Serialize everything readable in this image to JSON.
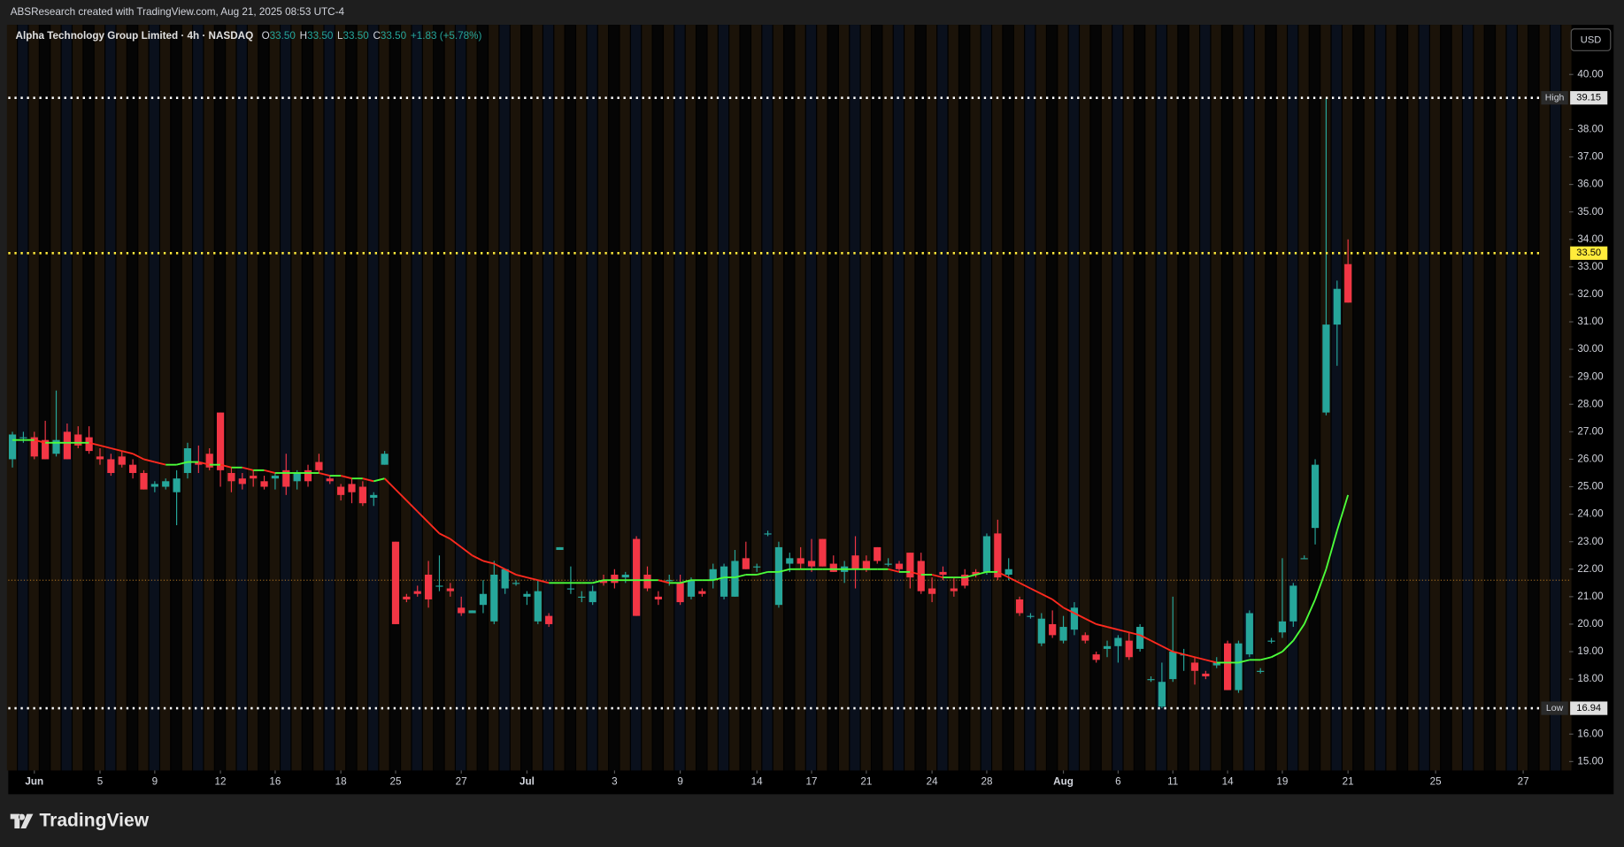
{
  "header": "ABSResearch created with TradingView.com, Aug 21, 2025 08:53 UTC-4",
  "brand": "TradingView",
  "chart_data": {
    "type": "candlestick",
    "symbol": "Alpha Technology Group Limited · 4h · NASDAQ",
    "legend_fields": [
      {
        "key": "O",
        "value": "33.50"
      },
      {
        "key": "H",
        "value": "33.50"
      },
      {
        "key": "L",
        "value": "33.50"
      },
      {
        "key": "C",
        "value": "33.50"
      }
    ],
    "change": "+1.83 (+5.78%)",
    "currency": "USD",
    "up_color": "#26a69a",
    "down_color": "#f23645",
    "ma_up_color": "#4cff3a",
    "ma_down_color": "#ff2a1f",
    "session_colors": [
      "#1b1309",
      "#0a101c",
      "#050505"
    ],
    "categories": [
      null,
      null,
      "Jun",
      null,
      null,
      null,
      null,
      null,
      "5",
      null,
      null,
      null,
      null,
      "9",
      null,
      null,
      null,
      null,
      null,
      "12",
      null,
      null,
      null,
      null,
      "16",
      null,
      null,
      null,
      null,
      null,
      "18",
      null,
      null,
      null,
      null,
      "25",
      null,
      null,
      null,
      null,
      null,
      "27",
      null,
      null,
      null,
      null,
      null,
      "Jul",
      null,
      null,
      null,
      null,
      null,
      null,
      null,
      "3",
      null,
      null,
      null,
      null,
      null,
      "9",
      null,
      null,
      null,
      null,
      null,
      null,
      "14",
      null,
      null,
      null,
      null,
      "17",
      null,
      null,
      null,
      null,
      "21",
      null,
      null,
      null,
      null,
      null,
      "24",
      null,
      null,
      null,
      null,
      "28",
      null,
      null,
      null,
      null,
      null,
      null,
      "Aug",
      null,
      null,
      null,
      null,
      "6",
      null,
      null,
      null,
      null,
      "11",
      null,
      null,
      null,
      null,
      "14",
      null,
      null,
      null,
      null,
      "19",
      null,
      null,
      null,
      null,
      null,
      "21",
      null,
      null,
      null,
      null,
      null,
      null,
      null,
      "25",
      null,
      null,
      null,
      null,
      null,
      null,
      null,
      "27",
      null,
      null,
      null,
      null
    ],
    "ohlc": [
      [
        26.0,
        27.0,
        25.7,
        26.9
      ],
      [
        26.8,
        27.0,
        26.6,
        26.8
      ],
      [
        26.8,
        27.0,
        26.0,
        26.1
      ],
      [
        26.7,
        27.4,
        26.0,
        26.0
      ],
      [
        26.2,
        28.5,
        26.1,
        26.7
      ],
      [
        27.0,
        27.3,
        26.0,
        26.0
      ],
      [
        26.9,
        27.2,
        26.4,
        26.5
      ],
      [
        26.8,
        27.2,
        26.2,
        26.3
      ],
      [
        26.1,
        26.4,
        25.8,
        26.0
      ],
      [
        26.0,
        26.2,
        25.4,
        25.5
      ],
      [
        26.1,
        26.3,
        25.7,
        25.8
      ],
      [
        25.8,
        26.0,
        25.3,
        25.5
      ],
      [
        25.5,
        25.6,
        24.9,
        24.9
      ],
      [
        25.0,
        25.2,
        24.8,
        25.1
      ],
      [
        25.0,
        25.3,
        24.9,
        25.2
      ],
      [
        24.8,
        25.6,
        23.6,
        25.3
      ],
      [
        25.5,
        26.6,
        25.3,
        26.4
      ],
      [
        25.9,
        26.5,
        25.5,
        25.8
      ],
      [
        26.2,
        26.4,
        25.6,
        25.7
      ],
      [
        27.7,
        27.7,
        25.0,
        25.6
      ],
      [
        25.5,
        25.7,
        24.8,
        25.2
      ],
      [
        25.3,
        25.5,
        24.9,
        25.1
      ],
      [
        25.4,
        25.6,
        25.0,
        25.3
      ],
      [
        25.2,
        25.4,
        24.9,
        25.0
      ],
      [
        25.3,
        25.5,
        24.9,
        25.4
      ],
      [
        25.6,
        26.2,
        24.7,
        25.0
      ],
      [
        25.2,
        25.6,
        24.9,
        25.5
      ],
      [
        25.6,
        25.8,
        25.0,
        25.2
      ],
      [
        25.9,
        26.2,
        25.5,
        25.6
      ],
      [
        25.3,
        25.4,
        25.1,
        25.2
      ],
      [
        25.0,
        25.1,
        24.5,
        24.7
      ],
      [
        25.1,
        25.3,
        24.4,
        24.8
      ],
      [
        25.0,
        25.2,
        24.3,
        24.4
      ],
      [
        24.6,
        24.8,
        24.3,
        24.7
      ],
      [
        25.8,
        26.3,
        25.8,
        26.2
      ],
      [
        23.0,
        23.0,
        20.0,
        20.0
      ],
      [
        21.0,
        21.1,
        20.8,
        20.9
      ],
      [
        21.2,
        21.4,
        21.0,
        21.1
      ],
      [
        21.8,
        22.3,
        20.6,
        20.9
      ],
      [
        21.4,
        22.5,
        21.2,
        21.4
      ],
      [
        21.3,
        21.5,
        21.0,
        21.2
      ],
      [
        20.6,
        21.0,
        20.3,
        20.4
      ],
      [
        20.4,
        20.5,
        20.4,
        20.5
      ],
      [
        20.7,
        21.6,
        20.4,
        21.1
      ],
      [
        20.1,
        22.3,
        20.0,
        21.8
      ],
      [
        21.3,
        22.0,
        21.1,
        22.0
      ],
      [
        21.5,
        21.6,
        21.4,
        21.5
      ],
      [
        21.0,
        21.2,
        20.7,
        21.1
      ],
      [
        20.1,
        21.6,
        20.0,
        21.2
      ],
      [
        20.3,
        20.4,
        19.9,
        20.0
      ],
      [
        22.7,
        22.8,
        22.7,
        22.8
      ],
      [
        21.3,
        22.1,
        21.1,
        21.3
      ],
      [
        21.0,
        21.2,
        20.8,
        21.0
      ],
      [
        20.8,
        21.4,
        20.7,
        21.2
      ],
      [
        21.6,
        21.8,
        21.4,
        21.5
      ],
      [
        21.8,
        22.0,
        21.3,
        21.5
      ],
      [
        21.7,
        21.9,
        21.5,
        21.8
      ],
      [
        23.1,
        23.2,
        20.3,
        20.3
      ],
      [
        21.8,
        22.1,
        21.2,
        21.3
      ],
      [
        21.0,
        21.2,
        20.7,
        20.9
      ],
      [
        21.6,
        21.8,
        21.4,
        21.6
      ],
      [
        21.5,
        21.8,
        20.7,
        20.8
      ],
      [
        21.0,
        21.7,
        20.9,
        21.6
      ],
      [
        21.2,
        21.3,
        21.0,
        21.1
      ],
      [
        21.6,
        22.2,
        21.3,
        22.0
      ],
      [
        21.0,
        22.2,
        20.9,
        22.1
      ],
      [
        21.0,
        22.7,
        21.0,
        22.3
      ],
      [
        22.4,
        23.0,
        22.0,
        22.0
      ],
      [
        22.1,
        22.2,
        21.9,
        22.1
      ],
      [
        23.3,
        23.4,
        23.2,
        23.3
      ],
      [
        20.7,
        23.0,
        20.6,
        22.8
      ],
      [
        22.2,
        22.6,
        21.9,
        22.4
      ],
      [
        22.4,
        22.8,
        22.0,
        22.2
      ],
      [
        22.3,
        23.1,
        21.9,
        22.1
      ],
      [
        23.1,
        23.1,
        22.1,
        22.1
      ],
      [
        22.2,
        22.5,
        21.9,
        21.9
      ],
      [
        21.9,
        22.3,
        21.5,
        22.1
      ],
      [
        22.5,
        23.2,
        21.3,
        22.0
      ],
      [
        22.3,
        22.5,
        21.9,
        22.0
      ],
      [
        22.8,
        22.8,
        22.2,
        22.3
      ],
      [
        22.2,
        22.4,
        22.1,
        22.2
      ],
      [
        22.2,
        22.3,
        21.9,
        22.0
      ],
      [
        22.6,
        22.6,
        21.3,
        21.7
      ],
      [
        22.3,
        22.6,
        21.1,
        21.2
      ],
      [
        21.3,
        21.7,
        20.8,
        21.1
      ],
      [
        21.9,
        22.1,
        21.6,
        21.8
      ],
      [
        21.3,
        21.7,
        21.0,
        21.2
      ],
      [
        21.8,
        22.0,
        21.3,
        21.4
      ],
      [
        21.9,
        22.0,
        21.7,
        21.8
      ],
      [
        21.9,
        23.3,
        21.8,
        23.2
      ],
      [
        23.3,
        23.8,
        21.6,
        21.7
      ],
      [
        21.8,
        22.4,
        21.6,
        22.0
      ],
      [
        20.9,
        21.0,
        20.3,
        20.4
      ],
      [
        20.3,
        20.4,
        20.2,
        20.3
      ],
      [
        19.3,
        20.4,
        19.2,
        20.2
      ],
      [
        20.0,
        20.5,
        19.5,
        19.6
      ],
      [
        19.4,
        20.3,
        19.3,
        19.9
      ],
      [
        19.8,
        20.8,
        19.6,
        20.6
      ],
      [
        19.6,
        19.7,
        19.3,
        19.4
      ],
      [
        18.9,
        19.0,
        18.6,
        18.7
      ],
      [
        19.1,
        19.4,
        18.8,
        19.2
      ],
      [
        19.2,
        19.6,
        18.6,
        19.5
      ],
      [
        19.4,
        19.7,
        18.7,
        18.8
      ],
      [
        19.1,
        20.0,
        19.0,
        19.9
      ],
      [
        18.0,
        18.1,
        17.9,
        18.0
      ],
      [
        17.0,
        18.6,
        16.94,
        17.9
      ],
      [
        18.0,
        21.0,
        17.9,
        19.0
      ],
      [
        18.9,
        19.1,
        18.3,
        18.9
      ],
      [
        18.6,
        18.8,
        17.8,
        18.3
      ],
      [
        18.2,
        18.3,
        18.0,
        18.1
      ],
      [
        18.5,
        18.8,
        18.4,
        18.6
      ],
      [
        19.3,
        19.4,
        17.6,
        17.6
      ],
      [
        17.6,
        19.4,
        17.5,
        19.3
      ],
      [
        18.9,
        20.5,
        18.8,
        20.4
      ],
      [
        18.3,
        18.4,
        18.2,
        18.3
      ],
      [
        19.4,
        19.5,
        19.3,
        19.4
      ],
      [
        19.7,
        22.4,
        19.5,
        20.1
      ],
      [
        20.1,
        21.5,
        19.9,
        21.4
      ],
      [
        22.4,
        22.5,
        22.4,
        22.4
      ],
      [
        23.5,
        26.0,
        22.9,
        25.8
      ],
      [
        27.7,
        39.15,
        27.6,
        30.9
      ],
      [
        30.9,
        32.5,
        29.4,
        32.2
      ],
      [
        33.1,
        34.0,
        31.7,
        31.7
      ],
      null,
      null,
      null,
      null,
      null,
      null,
      null,
      null,
      null,
      null,
      null,
      null,
      null,
      null,
      null,
      null,
      null,
      null,
      null,
      null
    ],
    "ma": [
      26.7,
      26.7,
      26.7,
      26.6,
      26.6,
      26.6,
      26.6,
      26.6,
      26.5,
      26.4,
      26.3,
      26.2,
      26.0,
      25.9,
      25.8,
      25.8,
      25.9,
      25.9,
      25.8,
      25.8,
      25.7,
      25.7,
      25.6,
      25.6,
      25.5,
      25.5,
      25.5,
      25.5,
      25.5,
      25.4,
      25.4,
      25.3,
      25.3,
      25.2,
      25.3,
      24.9,
      24.5,
      24.1,
      23.7,
      23.3,
      23.1,
      22.8,
      22.5,
      22.3,
      22.2,
      22.0,
      21.8,
      21.7,
      21.6,
      21.5,
      21.5,
      21.5,
      21.5,
      21.5,
      21.6,
      21.6,
      21.6,
      21.6,
      21.6,
      21.6,
      21.5,
      21.5,
      21.6,
      21.6,
      21.6,
      21.7,
      21.7,
      21.8,
      21.8,
      21.9,
      21.9,
      22.0,
      22.0,
      22.0,
      22.0,
      22.0,
      22.0,
      22.0,
      22.0,
      22.0,
      22.0,
      21.9,
      21.9,
      21.8,
      21.8,
      21.7,
      21.7,
      21.7,
      21.8,
      21.9,
      21.9,
      21.7,
      21.5,
      21.3,
      21.1,
      20.9,
      20.6,
      20.4,
      20.2,
      20.0,
      19.9,
      19.8,
      19.7,
      19.6,
      19.4,
      19.2,
      19.0,
      18.9,
      18.8,
      18.7,
      18.6,
      18.6,
      18.6,
      18.7,
      18.7,
      18.8,
      19.0,
      19.4,
      20.0,
      20.9,
      22.0,
      23.4,
      24.7,
      null,
      null,
      null,
      null,
      null,
      null,
      null,
      null,
      null,
      null,
      null,
      null,
      null,
      null,
      null,
      null,
      null,
      null,
      null,
      null
    ],
    "ylim": [
      14.676,
      41.807
    ],
    "yticks": [
      {
        "value": 15,
        "label": "15.00"
      },
      {
        "value": 16,
        "label": "16.00"
      },
      {
        "value": 18,
        "label": "18.00"
      },
      {
        "value": 19,
        "label": "19.00"
      },
      {
        "value": 20,
        "label": "20.00"
      },
      {
        "value": 21,
        "label": "21.00"
      },
      {
        "value": 22,
        "label": "22.00"
      },
      {
        "value": 23,
        "label": "23.00"
      },
      {
        "value": 24,
        "label": "24.00"
      },
      {
        "value": 25,
        "label": "25.00"
      },
      {
        "value": 26,
        "label": "26.00"
      },
      {
        "value": 27,
        "label": "27.00"
      },
      {
        "value": 28,
        "label": "28.00"
      },
      {
        "value": 29,
        "label": "29.00"
      },
      {
        "value": 30,
        "label": "30.00"
      },
      {
        "value": 31,
        "label": "31.00"
      },
      {
        "value": 32,
        "label": "32.00"
      },
      {
        "value": 33,
        "label": "33.00"
      },
      {
        "value": 34,
        "label": "34.00"
      },
      {
        "value": 35,
        "label": "35.00"
      },
      {
        "value": 36,
        "label": "36.00"
      },
      {
        "value": 37,
        "label": "37.00"
      },
      {
        "value": 38,
        "label": "38.00"
      },
      {
        "value": 40,
        "label": "40.00"
      }
    ],
    "high": {
      "label": "High",
      "value": 39.15
    },
    "low": {
      "label": "Low",
      "value": 16.94
    },
    "last": {
      "value": 33.5,
      "label": "33.50"
    },
    "reference_level": 21.6
  }
}
